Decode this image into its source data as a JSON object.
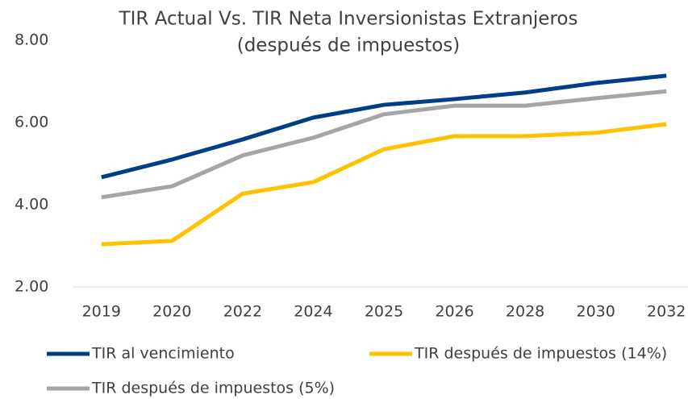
{
  "chart_data": {
    "type": "line",
    "title": "TIR Actual Vs. TIR Neta Inversionistas Extranjeros",
    "subtitle": "(después de impuestos)",
    "categories": [
      "2019",
      "2020",
      "2022",
      "2024",
      "2025",
      "2026",
      "2028",
      "2030",
      "2032"
    ],
    "series": [
      {
        "name": "TIR al vencimiento",
        "color": "#003f87",
        "values": [
          4.67,
          5.1,
          5.59,
          6.12,
          6.43,
          6.57,
          6.73,
          6.96,
          7.14
        ]
      },
      {
        "name": "TIR después de impuestos (14%)",
        "color": "#fdc300",
        "values": [
          3.04,
          3.12,
          4.27,
          4.55,
          5.35,
          5.67,
          5.67,
          5.75,
          5.96
        ]
      },
      {
        "name": "TIR después de impuestos (5%)",
        "color": "#a5a5a5",
        "values": [
          4.18,
          4.45,
          5.2,
          5.63,
          6.2,
          6.41,
          6.41,
          6.59,
          6.76
        ]
      }
    ],
    "ylim": [
      2,
      8
    ],
    "yticks": [
      {
        "value": 2,
        "label": "2.00"
      },
      {
        "value": 4,
        "label": "4.00"
      },
      {
        "value": 6,
        "label": "6.00"
      },
      {
        "value": 8,
        "label": "8.00"
      }
    ],
    "grid": false
  }
}
